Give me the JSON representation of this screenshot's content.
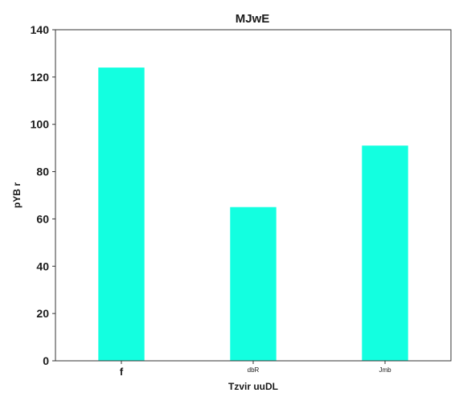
{
  "chart_data": {
    "type": "bar",
    "title": "MJwE",
    "xlabel": "Tzvir uuDL",
    "ylabel": "pYB r",
    "categories": [
      "f",
      "dbR",
      "Jmb"
    ],
    "values": [
      124,
      65,
      91
    ],
    "ylim": [
      0,
      140
    ],
    "yticks": [
      0,
      20,
      40,
      60,
      80,
      100,
      120,
      140
    ],
    "grid": false,
    "legend": "none",
    "bar_color": "#13ffe0"
  }
}
